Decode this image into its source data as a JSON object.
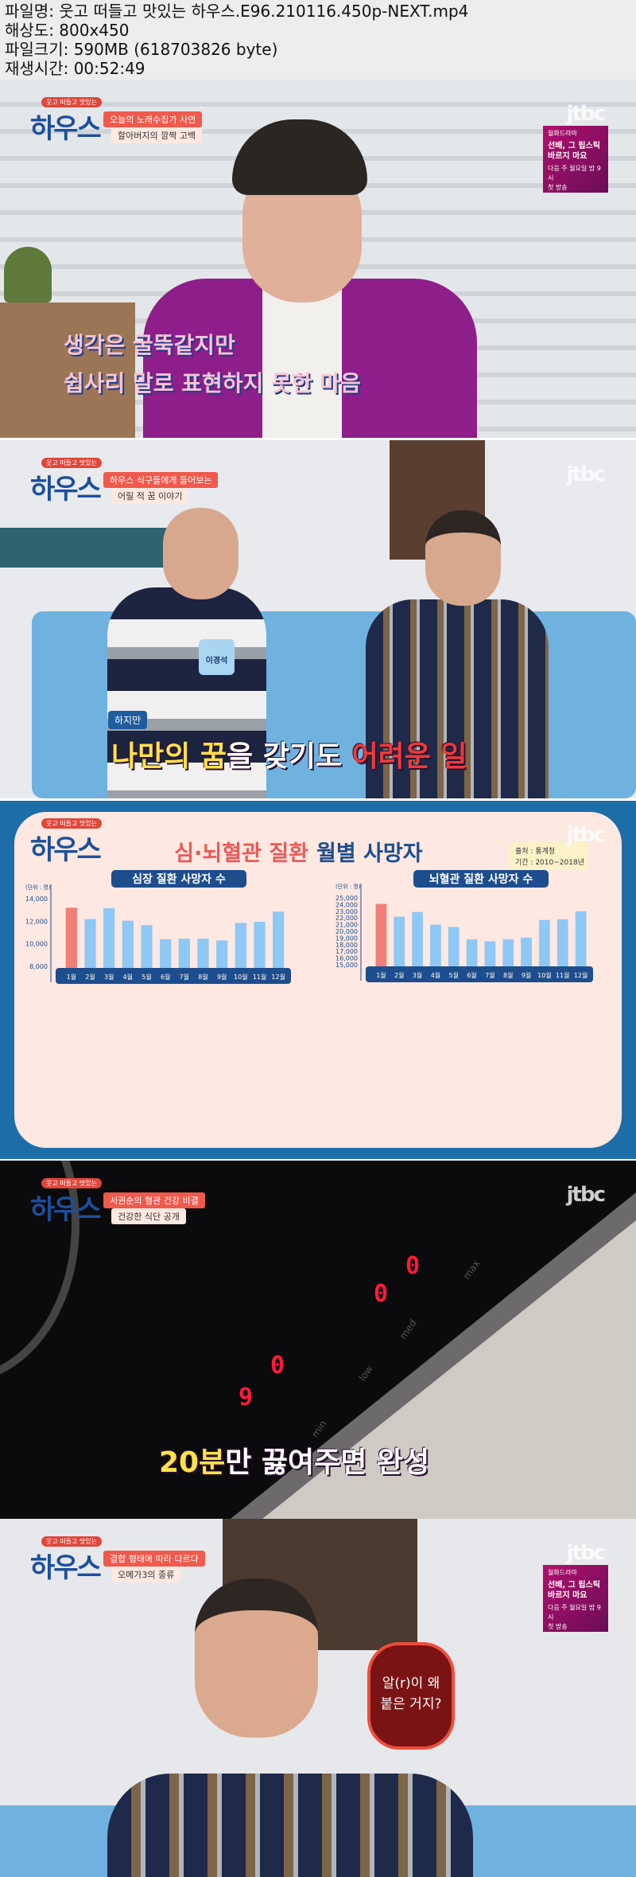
{
  "file_info": {
    "filename": "파일명: 웃고 떠들고 맛있는 하우스.E96.210116.450p-NEXT.mp4",
    "resolution": "해상도: 800x450",
    "filesize": "파일크기: 590MB (618703826 byte)",
    "duration": "재생시간: 00:52:49"
  },
  "show": {
    "logo_small": "웃고 떠들고 맛있는",
    "logo_big": "하우스",
    "channel": "jtbc"
  },
  "promo": {
    "genre": "월화드라마",
    "title": "선배, 그 립스틱 바르지 마요",
    "schedule": "다음 주 월요일 밤 9시",
    "note": "첫 방송"
  },
  "frames": [
    {
      "tag1": "오늘의 노래수집가 사연",
      "tag2": "할아버지의 깜짝 고백",
      "caption_line1": "생각은 굴뚝같지만",
      "caption_line2": "쉽사리 말로 표현하지 못한 마음"
    },
    {
      "tag1": "하우스 식구들에게 들어보는",
      "tag2": "어릴 적 꿈 이야기",
      "name_badge": "이경석",
      "sub_label": "하지만",
      "caption_a": "나만의 꿈",
      "caption_b": "을 갖기도 ",
      "caption_c": "어려운 일"
    },
    {
      "title_red": "심·뇌혈관 질환",
      "title_blue": "월별 사망자",
      "source": "출처 : 통계청",
      "period": "기간 : 2010~2018년"
    },
    {
      "tag1": "서권순의 혈관 건강 비결",
      "tag2": "건강한 식단 공개",
      "caption_a": "20분",
      "caption_b": "만 끓여주면 완성",
      "panel_labels": [
        "min",
        "low",
        "med",
        "max"
      ]
    },
    {
      "tag1": "결합 형태에 따라 다르다",
      "tag2": "오메가3의 종류",
      "bubble_line1": "알(r)이 왜",
      "bubble_line2": "붙은 거지?"
    }
  ],
  "chart_data": [
    {
      "type": "bar",
      "title": "심장 질환 사망자 수",
      "unit": "(단위 : 명)",
      "categories": [
        "1월",
        "2월",
        "3월",
        "4월",
        "5월",
        "6월",
        "7월",
        "8월",
        "9월",
        "10월",
        "11월",
        "12월"
      ],
      "values": [
        13200,
        12200,
        13150,
        12050,
        11650,
        10400,
        10450,
        10450,
        10300,
        11850,
        11950,
        12850
      ],
      "yticks": [
        "14,000",
        "12,000",
        "10,000",
        "8,000"
      ],
      "ylim": [
        8000,
        14000
      ],
      "highlight_color": "#f08077",
      "bar_color": "#8ec8f5"
    },
    {
      "type": "bar",
      "title": "뇌혈관 질환 사망자 수",
      "unit": "(단위 : 명)",
      "categories": [
        "1월",
        "2월",
        "3월",
        "4월",
        "5월",
        "6월",
        "7월",
        "8월",
        "9월",
        "10월",
        "11월",
        "12월"
      ],
      "values": [
        24100,
        22200,
        22900,
        21000,
        20650,
        18800,
        18500,
        18800,
        19050,
        21700,
        21800,
        23000
      ],
      "yticks": [
        "25,000",
        "24,000",
        "23,000",
        "22,000",
        "21,000",
        "20,000",
        "19,000",
        "18,000",
        "17,000",
        "16,000",
        "15,000"
      ],
      "ylim": [
        15000,
        25000
      ],
      "highlight_color": "#f08077",
      "bar_color": "#8ec8f5"
    }
  ]
}
